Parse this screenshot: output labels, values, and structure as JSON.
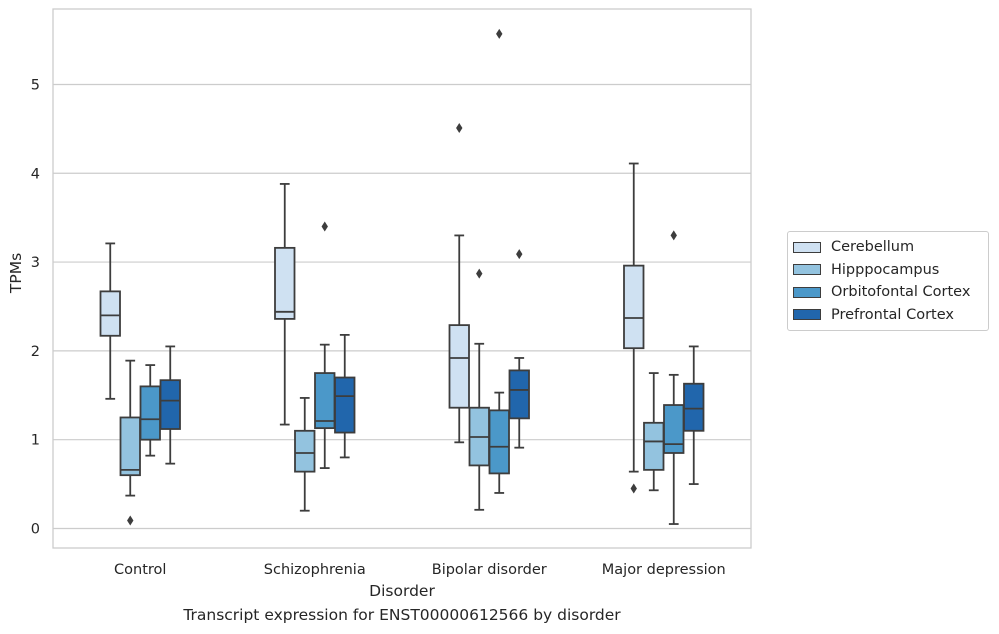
{
  "chart_data": {
    "type": "box",
    "xlabel": "Disorder",
    "ylabel": "TPMs",
    "caption": "Transcript expression for ENST00000612566 by disorder",
    "ylim": [
      -0.22,
      5.85
    ],
    "yticks": [
      0,
      1,
      2,
      3,
      4,
      5
    ],
    "grid": "y",
    "legend_position": "right",
    "categories": [
      "Control",
      "Schizophrenia",
      "Bipolar disorder",
      "Major depression"
    ],
    "series": [
      {
        "name": "Cerebellum",
        "color": "#cfe1f2",
        "boxes": [
          {
            "whislo": 1.46,
            "q1": 2.17,
            "med": 2.4,
            "q3": 2.67,
            "whishi": 3.21,
            "fliers": []
          },
          {
            "whislo": 1.17,
            "q1": 2.36,
            "med": 2.44,
            "q3": 3.16,
            "whishi": 3.88,
            "fliers": []
          },
          {
            "whislo": 0.97,
            "q1": 1.36,
            "med": 1.92,
            "q3": 2.29,
            "whishi": 3.3,
            "fliers": [
              4.51
            ]
          },
          {
            "whislo": 0.64,
            "q1": 2.03,
            "med": 2.37,
            "q3": 2.96,
            "whishi": 4.11,
            "fliers": [
              0.45
            ]
          }
        ]
      },
      {
        "name": "Hipppocampus",
        "color": "#93c3df",
        "boxes": [
          {
            "whislo": 0.37,
            "q1": 0.6,
            "med": 0.66,
            "q3": 1.25,
            "whishi": 1.89,
            "fliers": [
              0.09
            ]
          },
          {
            "whislo": 0.2,
            "q1": 0.64,
            "med": 0.85,
            "q3": 1.1,
            "whishi": 1.47,
            "fliers": []
          },
          {
            "whislo": 0.21,
            "q1": 0.71,
            "med": 1.03,
            "q3": 1.36,
            "whishi": 2.08,
            "fliers": [
              2.87
            ]
          },
          {
            "whislo": 0.43,
            "q1": 0.66,
            "med": 0.98,
            "q3": 1.19,
            "whishi": 1.75,
            "fliers": []
          }
        ]
      },
      {
        "name": "Orbitofontal Cortex",
        "color": "#4b98c9",
        "boxes": [
          {
            "whislo": 0.82,
            "q1": 1.0,
            "med": 1.23,
            "q3": 1.6,
            "whishi": 1.84,
            "fliers": []
          },
          {
            "whislo": 0.68,
            "q1": 1.13,
            "med": 1.21,
            "q3": 1.75,
            "whishi": 2.07,
            "fliers": [
              3.4
            ]
          },
          {
            "whislo": 0.4,
            "q1": 0.62,
            "med": 0.92,
            "q3": 1.33,
            "whishi": 1.53,
            "fliers": [
              5.57
            ]
          },
          {
            "whislo": 0.05,
            "q1": 0.85,
            "med": 0.95,
            "q3": 1.39,
            "whishi": 1.73,
            "fliers": [
              3.3
            ]
          }
        ]
      },
      {
        "name": "Prefrontal Cortex",
        "color": "#2166ac",
        "boxes": [
          {
            "whislo": 0.73,
            "q1": 1.12,
            "med": 1.44,
            "q3": 1.67,
            "whishi": 2.05,
            "fliers": []
          },
          {
            "whislo": 0.8,
            "q1": 1.08,
            "med": 1.49,
            "q3": 1.7,
            "whishi": 2.18,
            "fliers": []
          },
          {
            "whislo": 0.91,
            "q1": 1.24,
            "med": 1.56,
            "q3": 1.78,
            "whishi": 1.92,
            "fliers": [
              3.09
            ]
          },
          {
            "whislo": 0.5,
            "q1": 1.1,
            "med": 1.35,
            "q3": 1.63,
            "whishi": 2.05,
            "fliers": []
          }
        ]
      }
    ]
  }
}
